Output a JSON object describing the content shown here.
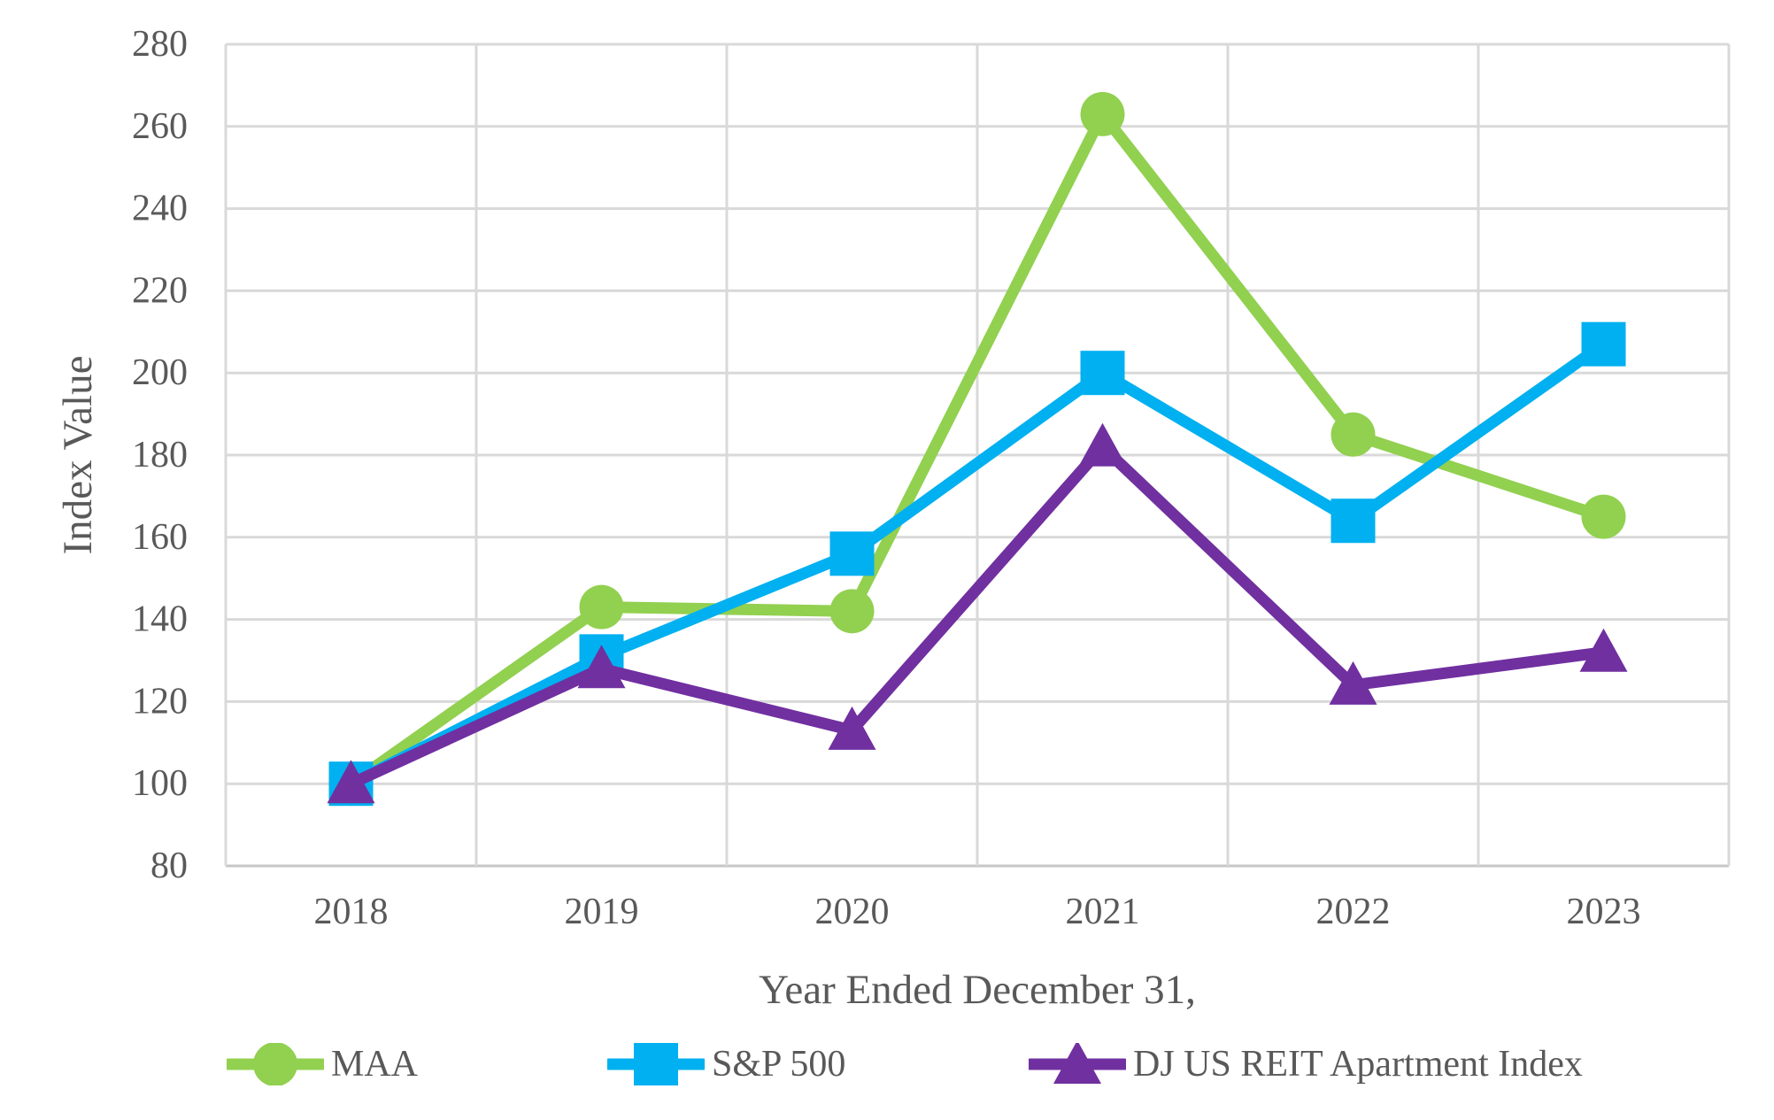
{
  "chart_data": {
    "type": "line",
    "xlabel": "Year Ended December 31,",
    "ylabel": "Index Value",
    "categories": [
      "2018",
      "2019",
      "2020",
      "2021",
      "2022",
      "2023"
    ],
    "yticks": [
      80,
      100,
      120,
      140,
      160,
      180,
      200,
      220,
      240,
      260,
      280
    ],
    "ylim": [
      80,
      280
    ],
    "grid": true,
    "legend_position": "bottom",
    "series": [
      {
        "name": "MAA",
        "marker": "circle",
        "color": "#92D050",
        "values": [
          100,
          143,
          142,
          263,
          185,
          165
        ]
      },
      {
        "name": "S&P 500",
        "marker": "square",
        "color": "#00B0F0",
        "values": [
          100,
          131,
          156,
          200,
          164,
          207
        ]
      },
      {
        "name": "DJ US REIT Apartment Index",
        "marker": "triangle",
        "color": "#7030A0",
        "values": [
          100,
          128,
          113,
          182,
          124,
          132
        ]
      }
    ],
    "colors": {
      "text": "#595959",
      "gridline": "#D9D9D9",
      "axis_line": "#C6C6C6"
    }
  }
}
